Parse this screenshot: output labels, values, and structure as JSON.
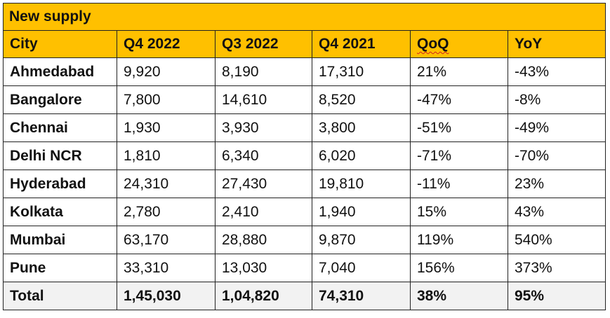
{
  "table": {
    "title": "New supply",
    "headers": [
      "City",
      "Q4 2022",
      "Q3 2022",
      "Q4 2021",
      "QoQ",
      "YoY"
    ],
    "rows": [
      [
        "Ahmedabad",
        "9,920",
        "8,190",
        "17,310",
        "21%",
        "-43%"
      ],
      [
        "Bangalore",
        "7,800",
        "14,610",
        "8,520",
        "-47%",
        "-8%"
      ],
      [
        "Chennai",
        "1,930",
        "3,930",
        "3,800",
        "-51%",
        "-49%"
      ],
      [
        "Delhi NCR",
        "1,810",
        "6,340",
        "6,020",
        "-71%",
        "-70%"
      ],
      [
        "Hyderabad",
        "24,310",
        "27,430",
        "19,810",
        "-11%",
        "23%"
      ],
      [
        "Kolkata",
        "2,780",
        "2,410",
        "1,940",
        "15%",
        "43%"
      ],
      [
        "Mumbai",
        "63,170",
        "28,880",
        "9,870",
        "119%",
        "540%"
      ],
      [
        "Pune",
        "33,310",
        "13,030",
        "7,040",
        "156%",
        "373%"
      ]
    ],
    "total": [
      "Total",
      "1,45,030",
      "1,04,820",
      "74,310",
      "38%",
      "95%"
    ]
  },
  "colors": {
    "header_bg": "#FFC000",
    "total_bg": "#F2F2F2",
    "border": "#222222"
  }
}
